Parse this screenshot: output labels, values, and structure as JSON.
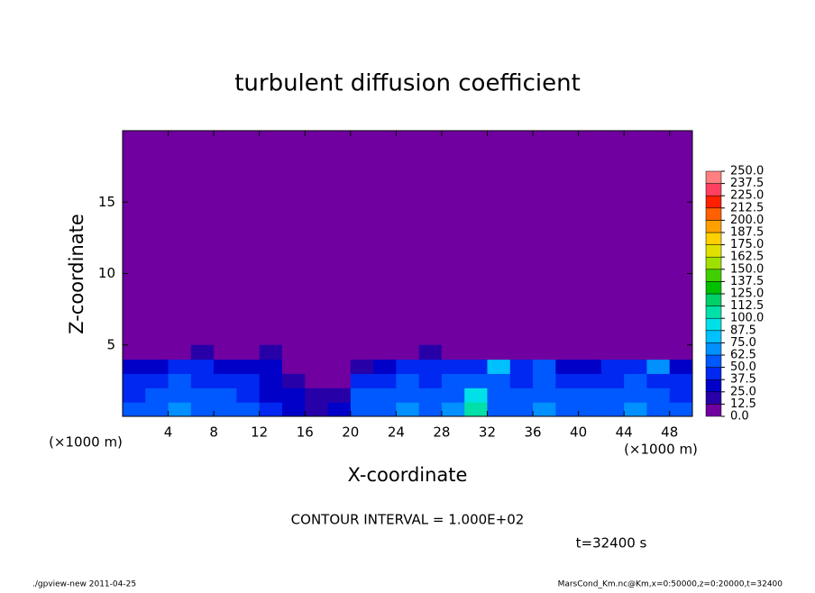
{
  "chart_data": {
    "type": "heatmap",
    "title": "turbulent diffusion coefficient",
    "xlabel": "X-coordinate",
    "ylabel": "Z-coordinate",
    "x_unit": "(×1000 m)",
    "x_unit_right": "(×1000 m)",
    "contour_note": "CONTOUR INTERVAL = 1.000E+02",
    "time_label": "t=32400 s",
    "footer_left": "./gpview-new  2011-04-25",
    "footer_right": "MarsCond_Km.nc@Km,x=0:50000,z=0:20000,t=32400",
    "xlim": [
      0,
      50
    ],
    "ylim": [
      0,
      20
    ],
    "xticks": [
      4,
      8,
      12,
      16,
      20,
      24,
      28,
      32,
      36,
      40,
      44,
      48
    ],
    "yticks": [
      5,
      10,
      15
    ],
    "x": [
      1,
      3,
      5,
      7,
      9,
      11,
      13,
      15,
      17,
      19,
      21,
      23,
      25,
      27,
      29,
      31,
      33,
      35,
      37,
      39,
      41,
      43,
      45,
      47,
      49
    ],
    "z": [
      0.5,
      1.5,
      2.5,
      3.5,
      4.5
    ],
    "values": [
      [
        55,
        60,
        65,
        60,
        55,
        50,
        40,
        30,
        20,
        25,
        55,
        60,
        65,
        60,
        70,
        110,
        60,
        55,
        65,
        60,
        55,
        60,
        65,
        60,
        55
      ],
      [
        45,
        55,
        60,
        55,
        50,
        45,
        35,
        25,
        15,
        20,
        50,
        55,
        60,
        55,
        60,
        90,
        55,
        50,
        55,
        50,
        55,
        50,
        55,
        50,
        45
      ],
      [
        40,
        45,
        50,
        45,
        40,
        40,
        30,
        20,
        10,
        10,
        40,
        45,
        50,
        45,
        50,
        60,
        50,
        45,
        50,
        45,
        40,
        45,
        50,
        45,
        40
      ],
      [
        25,
        35,
        40,
        40,
        35,
        35,
        25,
        10,
        5,
        5,
        20,
        35,
        40,
        45,
        40,
        45,
        75,
        40,
        50,
        35,
        35,
        40,
        45,
        70,
        30
      ],
      [
        0,
        0,
        10,
        15,
        5,
        5,
        15,
        0,
        0,
        0,
        0,
        5,
        10,
        15,
        10,
        5,
        10,
        5,
        0,
        0,
        5,
        10,
        10,
        5,
        0
      ]
    ],
    "levels": [
      {
        "value": 0,
        "label": "0.0"
      },
      {
        "value": 12.5,
        "label": "12.5"
      },
      {
        "value": 25,
        "label": "25.0"
      },
      {
        "value": 37.5,
        "label": "37.5"
      },
      {
        "value": 50,
        "label": "50.0"
      },
      {
        "value": 62.5,
        "label": "62.5"
      },
      {
        "value": 75,
        "label": "75.0"
      },
      {
        "value": 87.5,
        "label": "87.5"
      },
      {
        "value": 100,
        "label": "100.0"
      },
      {
        "value": 112.5,
        "label": "112.5"
      },
      {
        "value": 125,
        "label": "125.0"
      },
      {
        "value": 137.5,
        "label": "137.5"
      },
      {
        "value": 150,
        "label": "150.0"
      },
      {
        "value": 162.5,
        "label": "162.5"
      },
      {
        "value": 175,
        "label": "175.0"
      },
      {
        "value": 187.5,
        "label": "187.5"
      },
      {
        "value": 200,
        "label": "200.0"
      },
      {
        "value": 212.5,
        "label": "212.5"
      },
      {
        "value": 225,
        "label": "225.0"
      },
      {
        "value": 237.5,
        "label": "237.5"
      },
      {
        "value": 250,
        "label": "250.0"
      }
    ],
    "colors": [
      "#7000a0",
      "#2800a8",
      "#0000c8",
      "#0028f0",
      "#0058ff",
      "#0090ff",
      "#00c0ff",
      "#00e0e8",
      "#00e0a8",
      "#00d068",
      "#00c000",
      "#40d000",
      "#a0e000",
      "#e0e000",
      "#ffd000",
      "#ffa000",
      "#ff6000",
      "#ff2000",
      "#ff4060",
      "#ff8080"
    ]
  }
}
